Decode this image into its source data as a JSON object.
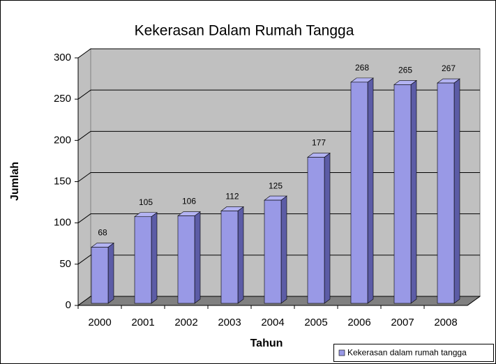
{
  "chart_data": {
    "type": "bar3d",
    "title": "Kekerasan Dalam Rumah Tangga",
    "x_label": "Tahun",
    "y_label": "Jumlah",
    "categories": [
      "2000",
      "2001",
      "2002",
      "2003",
      "2004",
      "2005",
      "2006",
      "2007",
      "2008"
    ],
    "series": [
      {
        "name": "Kekerasan dalam rumah tangga",
        "color": "#9999e6",
        "values": [
          68,
          105,
          106,
          112,
          125,
          177,
          268,
          265,
          267
        ]
      }
    ],
    "ylim": [
      0,
      300
    ],
    "yticks": [
      0,
      50,
      100,
      150,
      200,
      250,
      300
    ],
    "grid": true,
    "legend": "bottom-right"
  }
}
